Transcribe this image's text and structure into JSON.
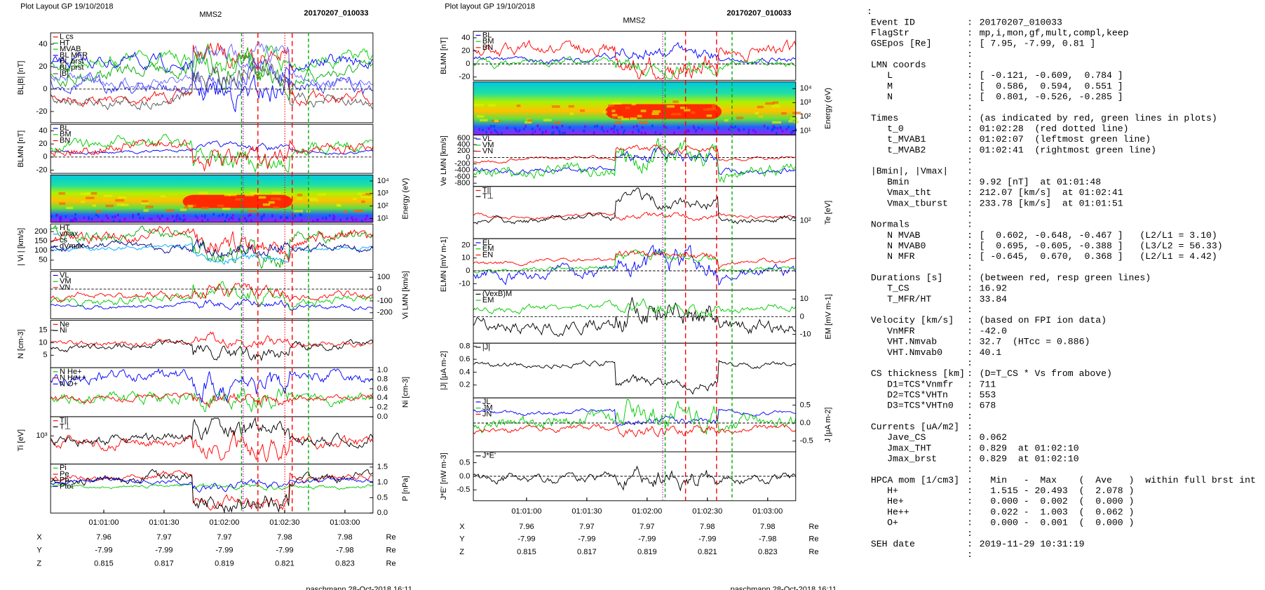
{
  "left": {
    "header": "Plot Layout GP 19/10/2018",
    "title": "MMS2",
    "event": "20170207_010033",
    "panels": [
      {
        "ylabel": "BL|B| [nT]",
        "ylim": [
          -30,
          50
        ],
        "yticks": [
          40,
          20,
          0,
          -20
        ],
        "legend": [
          {
            "name": "L cs",
            "color": "#ff0000"
          },
          {
            "name": "HT",
            "color": "#00aa00"
          },
          {
            "name": "MVAB",
            "color": "#00cc00"
          },
          {
            "name": "BL MFR",
            "color": "#0000ff"
          },
          {
            "name": "BL brst",
            "color": "#3333ff"
          },
          {
            "name": "BL prst",
            "color": "#6666ff"
          },
          {
            "name": "|B|",
            "color": "#555555"
          }
        ]
      },
      {
        "ylabel": "BLMN [nT]",
        "ylim": [
          -25,
          50
        ],
        "yticks": [
          40,
          20,
          0,
          -20
        ],
        "legend": [
          {
            "name": "BL",
            "color": "#0000ff"
          },
          {
            "name": "BM",
            "color": "#00cc00"
          },
          {
            "name": "BN",
            "color": "#ff0000"
          }
        ]
      },
      {
        "ylabel": "Energy (eV)",
        "axis": "right",
        "log": true,
        "ylim": [
          5,
          30000
        ],
        "yticks": [
          {
            "value": 10000,
            "label": "10⁴"
          },
          {
            "value": 1000,
            "label": "10³"
          },
          {
            "value": 100,
            "label": "10²"
          },
          {
            "value": 10,
            "label": "10¹"
          }
        ]
      },
      {
        "ylabel": "| Vi | [km/s]",
        "ylim": [
          0,
          240
        ],
        "yticks": [
          200,
          150,
          100,
          50
        ],
        "legend": [
          {
            "name": "HT",
            "color": "#00aa00"
          },
          {
            "name": "vmax",
            "color": "#00aaff"
          },
          {
            "name": "cs",
            "color": "#ff0000"
          },
          {
            "name": "dVmax",
            "color": "#000088"
          }
        ]
      },
      {
        "ylabel": "Vi LMN [km/s]",
        "axis": "right",
        "ylim": [
          -250,
          150
        ],
        "yticks": [
          100,
          0,
          -100,
          -200
        ],
        "legend": [
          {
            "name": "VL",
            "color": "#0000ff"
          },
          {
            "name": "VM",
            "color": "#00cc00"
          },
          {
            "name": "VN",
            "color": "#ff0000"
          }
        ]
      },
      {
        "ylabel": "N [cm-3]",
        "ylim": [
          0,
          19
        ],
        "yticks": [
          15,
          10,
          5
        ],
        "legend": [
          {
            "name": "Ne",
            "color": "#ff0000"
          },
          {
            "name": "Ni",
            "color": "#000000"
          }
        ]
      },
      {
        "ylabel": "Ni [cm-3]",
        "axis": "right",
        "ylim": [
          0,
          1.05
        ],
        "yticks": [
          {
            "value": 1,
            "label": "1.0"
          },
          0.8,
          0.6,
          0.4,
          0.2,
          {
            "value": 0,
            "label": "0.0"
          }
        ],
        "legend": [
          {
            "name": "N He+",
            "color": "#00cc00"
          },
          {
            "name": "N He++",
            "color": "#ff0000"
          },
          {
            "name": "N O+",
            "color": "#0000ff"
          }
        ]
      },
      {
        "ylabel": "Ti [eV]",
        "log": true,
        "ylim": [
          200,
          3000
        ],
        "yticks": [
          {
            "value": 1000,
            "label": "10³"
          }
        ],
        "legend": [
          {
            "name": "T||",
            "color": "#ff0000"
          },
          {
            "name": "T⊥",
            "color": "#000000"
          }
        ]
      },
      {
        "ylabel": "P [nPa]",
        "axis": "right",
        "ylim": [
          0,
          1.6
        ],
        "yticks": [
          1.5,
          {
            "value": 1,
            "label": "1.0"
          },
          0.5,
          {
            "value": 0,
            "label": "0.0"
          }
        ],
        "legend": [
          {
            "name": "Pi",
            "color": "#00cc00"
          },
          {
            "name": "Pe",
            "color": "#ff0000"
          },
          {
            "name": "Pb",
            "color": "#000000"
          },
          {
            "name": "Ptot",
            "color": "#0000ff"
          }
        ]
      }
    ],
    "times": [
      "01:01:00",
      "01:01:30",
      "01:02:00",
      "01:02:30",
      "01:03:00"
    ],
    "ephemeris": [
      {
        "label": "X",
        "values": [
          7.96,
          7.97,
          7.97,
          7.98,
          7.98
        ],
        "unit": "Re"
      },
      {
        "label": "Y",
        "values": [
          -7.99,
          -7.99,
          -7.99,
          -7.99,
          -7.98
        ],
        "unit": "Re"
      },
      {
        "label": "Z",
        "values": [
          0.815,
          0.817,
          0.819,
          0.821,
          0.823
        ],
        "unit": "Re"
      }
    ],
    "footer": "paschmann 28-Oct-2018 16:11"
  },
  "middle": {
    "header": "Plot layout GP 19/10/2018",
    "title": "MMS2",
    "event": "20170207_010033",
    "panels": [
      {
        "ylabel": "BLMN [nT]",
        "ylim": [
          -25,
          50
        ],
        "yticks": [
          40,
          20,
          0,
          -20
        ],
        "legend": [
          {
            "name": "BL",
            "color": "#0000ff"
          },
          {
            "name": "BM",
            "color": "#00cc00"
          },
          {
            "name": "BN",
            "color": "#ff0000"
          }
        ]
      },
      {
        "ylabel": "Energy (eV)",
        "axis": "right",
        "log": true,
        "ylim": [
          5,
          30000
        ],
        "yticks": [
          {
            "value": 10000,
            "label": "10⁴"
          },
          {
            "value": 1000,
            "label": "10³"
          },
          {
            "value": 100,
            "label": "10²"
          },
          {
            "value": 10,
            "label": "10¹"
          }
        ]
      },
      {
        "ylabel": "Ve LMN [km/s]",
        "ylim": [
          -900,
          700
        ],
        "yticks": [
          600,
          400,
          200,
          0,
          -200,
          -400,
          -600,
          -800
        ],
        "legend": [
          {
            "name": "VL",
            "color": "#0000ff"
          },
          {
            "name": "VM",
            "color": "#00cc00"
          },
          {
            "name": "VN",
            "color": "#ff0000"
          }
        ]
      },
      {
        "ylabel": "Te [eV]",
        "axis": "right",
        "log": true,
        "ylim": [
          30,
          1000
        ],
        "yticks": [
          {
            "value": 100,
            "label": "10²"
          }
        ],
        "legend": [
          {
            "name": "T||",
            "color": "#ff0000"
          },
          {
            "name": "T⊥",
            "color": "#000000"
          }
        ]
      },
      {
        "ylabel": "ELMN [mV m-1]",
        "ylim": [
          -15,
          25
        ],
        "yticks": [
          20,
          10,
          0,
          -10
        ],
        "legend": [
          {
            "name": "EL",
            "color": "#0000ff"
          },
          {
            "name": "EM",
            "color": "#00cc00"
          },
          {
            "name": "EN",
            "color": "#ff0000"
          }
        ]
      },
      {
        "ylabel": "EM [mV m-1]",
        "axis": "right",
        "ylim": [
          -15,
          15
        ],
        "yticks": [
          10,
          0,
          -10
        ],
        "legend": [
          {
            "name": "(VexB)M",
            "color": "#000000"
          },
          {
            "name": "EM",
            "color": "#00cc00"
          }
        ]
      },
      {
        "ylabel": "|J| [μA m-2]",
        "ylim": [
          0,
          0.85
        ],
        "yticks": [
          0.8,
          0.6,
          0.4,
          0.2
        ],
        "legend": [
          {
            "name": "|J|",
            "color": "#000000"
          }
        ]
      },
      {
        "ylabel": "J [μA m-2]",
        "axis": "right",
        "ylim": [
          -0.8,
          0.7
        ],
        "yticks": [
          0.5,
          {
            "value": 0,
            "label": "0.0"
          },
          -0.5
        ],
        "legend": [
          {
            "name": "JL",
            "color": "#0000ff"
          },
          {
            "name": "JM",
            "color": "#00cc00"
          },
          {
            "name": "JN",
            "color": "#ff0000"
          }
        ]
      },
      {
        "ylabel": "J*E' [nW m-3]",
        "ylim": [
          -0.9,
          0.9
        ],
        "yticks": [
          0.5,
          {
            "value": 0,
            "label": "0.0"
          },
          -0.5
        ],
        "legend": [
          {
            "name": "J*E'",
            "color": "#000000"
          }
        ]
      }
    ],
    "times": [
      "01:01:00",
      "01:01:30",
      "01:02:00",
      "01:02:30",
      "01:03:00"
    ],
    "ephemeris": [
      {
        "label": "X",
        "values": [
          7.96,
          7.97,
          7.97,
          7.98,
          7.98
        ],
        "unit": "Re"
      },
      {
        "label": "Y",
        "values": [
          -7.99,
          -7.99,
          -7.99,
          -7.99,
          -7.98
        ],
        "unit": "Re"
      },
      {
        "label": "Z",
        "values": [
          0.815,
          0.817,
          0.819,
          0.821,
          0.823
        ],
        "unit": "Re"
      }
    ],
    "footer": "paschmann 28-Oct-2018 16:11"
  },
  "right": {
    "separator": ":",
    "groups": [
      [
        {
          "key": "Event ID",
          "value": "20170207_010033"
        },
        {
          "key": "FlagStr",
          "value": "mp,i,mon,gf,mult,compl,keep"
        },
        {
          "key": "GSEpos [Re]",
          "value": "[ 7.95, -7.99, 0.81 ]"
        }
      ],
      [
        {
          "key": "LMN coords"
        },
        {
          "key": "L",
          "value": "[ -0.121, -0.609,  0.784 ]"
        },
        {
          "key": "M",
          "value": "[  0.586,  0.594,  0.551 ]"
        },
        {
          "key": "N",
          "value": "[  0.801, -0.526, -0.285 ]"
        }
      ],
      [
        {
          "key": "Times",
          "value": "(as indicated by red, green lines in plots)"
        },
        {
          "key": "t_0",
          "value": "01:02:28  (red dotted line)"
        },
        {
          "key": "t_MVAB1",
          "value": "01:02:07  (leftmost green line)"
        },
        {
          "key": "t_MVAB2",
          "value": "01:02:41  (rightmost green line)"
        }
      ],
      [
        {
          "key": "|Bmin|, |Vmax|"
        },
        {
          "key": "Bmin",
          "value": "9.92 [nT]  at 01:01:48"
        },
        {
          "key": "Vmax_tht",
          "value": "212.07 [km/s]  at 01:02:41"
        },
        {
          "key": "Vmax_tburst",
          "value": "233.78 [km/s]  at 01:01:51"
        }
      ],
      [
        {
          "key": "Normals"
        },
        {
          "key": "N MVAB",
          "value": "[  0.602, -0.648, -0.467 ]   (L2/L1 = 3.10)"
        },
        {
          "key": "N MVAB0",
          "value": "[  0.695, -0.605, -0.388 ]   (L3/L2 = 56.33)"
        },
        {
          "key": "N MFR",
          "value": "[ -0.645,  0.670,  0.368 ]   (L2/L1 = 4.42)"
        }
      ],
      [
        {
          "key": "Durations [s]",
          "value": "(between red, resp green lines)"
        },
        {
          "key": "T_CS",
          "value": "16.92"
        },
        {
          "key": "T_MFR/HT",
          "value": "33.84"
        }
      ],
      [
        {
          "key": "Velocity [km/s]",
          "value": "(based on FPI ion data)"
        },
        {
          "key": "VnMFR",
          "value": "-42.0"
        },
        {
          "key": "VHT.Nmvab",
          "value": "32.7  (HTcc = 0.886)"
        },
        {
          "key": "VHT.Nmvab0",
          "value": "40.1"
        }
      ],
      [
        {
          "key": "CS thickness [km]",
          "value": "(D=T_CS * Vs from above)"
        },
        {
          "key": "D1=TCS*Vnmfr",
          "value": "711"
        },
        {
          "key": "D2=TCS*VHTn",
          "value": "553"
        },
        {
          "key": "D3=TCS*VHTn0",
          "value": "678"
        }
      ],
      [
        {
          "key": "Currents [uA/m2]"
        },
        {
          "key": "Jave_CS",
          "value": "0.062"
        },
        {
          "key": "Jmax_THT",
          "value": "0.829  at 01:02:10"
        },
        {
          "key": "Jmax_brst",
          "value": "0.829  at 01:02:10"
        }
      ],
      [
        {
          "key": "HPCA mom [1/cm3]",
          "value": "  Min   -  Max    (  Ave   )  within full brst int"
        },
        {
          "key": "H+",
          "value": "  1.515 - 20.493  (  2.078 )"
        },
        {
          "key": "He+",
          "value": "  0.000 -  0.002  (  0.000 )"
        },
        {
          "key": "He++",
          "value": "  0.022 -  1.003  (  0.062 )"
        },
        {
          "key": "O+",
          "value": "  0.000 -  0.001  (  0.000 )"
        }
      ],
      [
        {
          "key": "SEH date",
          "value": "2019-11-29 10:31:19"
        }
      ]
    ]
  }
}
